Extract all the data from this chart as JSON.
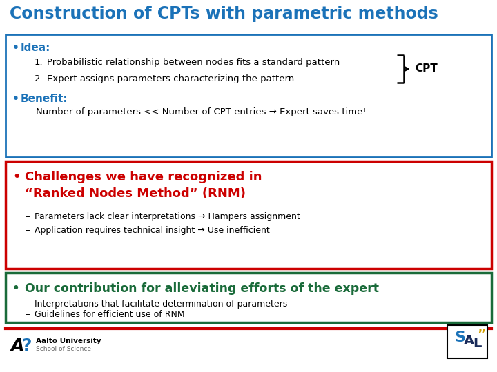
{
  "title": "Construction of CPTs with parametric methods",
  "title_color": "#1B72B8",
  "title_fontsize": 17,
  "bg_color": "#FFFFFF",
  "box1": {
    "border_color": "#1B72B8",
    "bullet1_label": "Idea:",
    "bullet1_color": "#1B72B8",
    "item1": "Probabilistic relationship between nodes fits a standard pattern",
    "item2": "Expert assigns parameters characterizing the pattern",
    "cpt_label": "CPT",
    "bullet2_label": "Benefit:",
    "bullet2_color": "#1B72B8",
    "benefit_text": "Number of parameters << Number of CPT entries → Expert saves time!"
  },
  "box2": {
    "border_color": "#CC0000",
    "bullet_color": "#CC0000",
    "title_line1": "Challenges we have recognized in",
    "title_line2": "“Ranked Nodes Method” (RNM)",
    "item1": "Parameters lack clear interpretations → Hampers assignment",
    "item2": "Application requires technical insight → Use inefficient"
  },
  "box3": {
    "border_color": "#1A6B3A",
    "bullet_color": "#1A6B3A",
    "title_text": "Our contribution for alleviating efforts of the expert",
    "item1": "Interpretations that facilitate determination of parameters",
    "item2": "Guidelines for efficient use of RNM"
  },
  "footer_line_color": "#CC0000",
  "body_fontsize": 9.5,
  "sub_fontsize": 9,
  "bullet_fontsize": 11,
  "idea_fontsize": 11,
  "challenge_title_fontsize": 13,
  "contrib_title_fontsize": 12.5
}
